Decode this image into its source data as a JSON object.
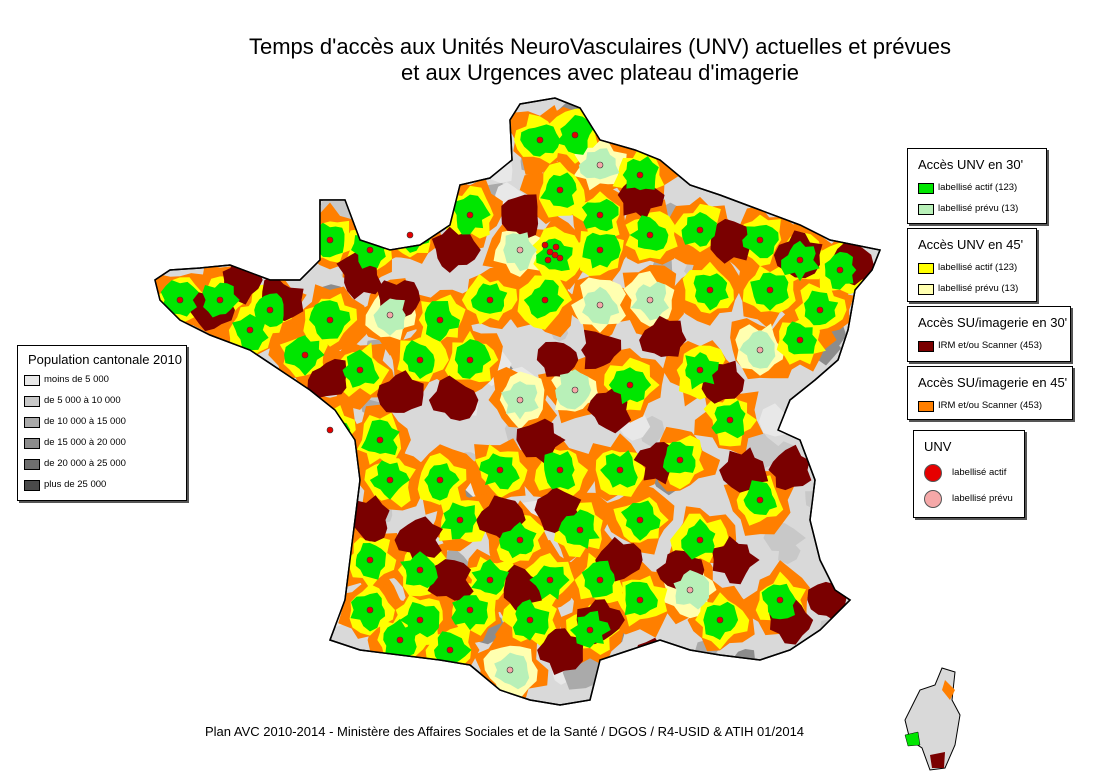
{
  "title": {
    "line1": "Temps d'accès aux Unités NeuroVasculaires (UNV) actuelles et prévues",
    "line2": "et aux Urgences avec plateau d'imagerie"
  },
  "legend_population": {
    "title": "Population cantonale 2010",
    "items": [
      {
        "label": "moins de 5 000",
        "color": "#e8e8e8"
      },
      {
        "label": "de 5 000 à 10 000",
        "color": "#c8c8c8"
      },
      {
        "label": "de 10 000 à 15 000",
        "color": "#aaaaaa"
      },
      {
        "label": "de 15 000 à 20 000",
        "color": "#8c8c8c"
      },
      {
        "label": "de 20 000 à 25 000",
        "color": "#6e6e6e"
      },
      {
        "label": "plus de 25 000",
        "color": "#4a4a4a"
      }
    ]
  },
  "legend_unv30": {
    "title": "Accès UNV en 30'",
    "items": [
      {
        "label": "labellisé actif (123)",
        "color": "#00e600"
      },
      {
        "label": "labellisé prévu (13)",
        "color": "#b8f0b8"
      }
    ]
  },
  "legend_unv45": {
    "title": "Accès UNV en 45'",
    "items": [
      {
        "label": "labellisé actif (123)",
        "color": "#ffff00"
      },
      {
        "label": "labellisé prévu (13)",
        "color": "#ffffb0"
      }
    ]
  },
  "legend_su30": {
    "title": "Accès SU/imagerie en 30'",
    "items": [
      {
        "label": "IRM et/ou Scanner (453)",
        "color": "#7a0000"
      }
    ]
  },
  "legend_su45": {
    "title": "Accès SU/imagerie en 45'",
    "items": [
      {
        "label": "IRM et/ou Scanner (453)",
        "color": "#ff7f00"
      }
    ]
  },
  "legend_unv": {
    "title": "UNV",
    "items": [
      {
        "label": "labellisé actif",
        "color": "#e60000"
      },
      {
        "label": "labellisé prévu",
        "color": "#f5a8a8"
      }
    ]
  },
  "footer": "Plan AVC 2010-2014 - Ministère des Affaires Sociales et de la Santé / DGOS / R4-USID & ATIH 01/2014"
}
